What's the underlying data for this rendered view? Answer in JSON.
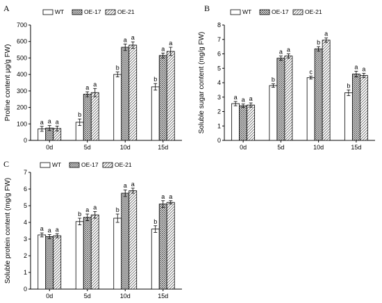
{
  "styles": {
    "WT": {
      "fill": "#ffffff"
    },
    "OE-17": {
      "fill": "url(#pat-cross)"
    },
    "OE-21": {
      "fill": "url(#pat-diag)"
    }
  },
  "chart_data": [
    {
      "panel": "A",
      "type": "bar",
      "categories": [
        "0d",
        "5d",
        "10d",
        "15d"
      ],
      "ylabel": "Proline content μg/g FW)",
      "ylim": [
        0,
        700
      ],
      "yticks": [
        0,
        100,
        200,
        300,
        400,
        500,
        600,
        700
      ],
      "legend": [
        "WT",
        "OE-17",
        "OE-21"
      ],
      "series": [
        {
          "name": "WT",
          "values": [
            70,
            110,
            400,
            325
          ],
          "errors": [
            15,
            20,
            15,
            20
          ],
          "labels": [
            "a",
            "b",
            "b",
            "b"
          ]
        },
        {
          "name": "OE-17",
          "values": [
            75,
            280,
            565,
            515
          ],
          "errors": [
            15,
            15,
            20,
            15
          ],
          "labels": [
            "a",
            "a",
            "a",
            "a"
          ]
        },
        {
          "name": "OE-21",
          "values": [
            72,
            290,
            578,
            540
          ],
          "errors": [
            15,
            25,
            20,
            25
          ],
          "labels": [
            "a",
            "a",
            "a",
            "a"
          ]
        }
      ]
    },
    {
      "panel": "B",
      "type": "bar",
      "categories": [
        "0d",
        "5d",
        "10d",
        "15d"
      ],
      "ylabel": "Soluble sugar content (mg/g FW)",
      "ylim": [
        0,
        8
      ],
      "yticks": [
        0,
        1,
        2,
        3,
        4,
        5,
        6,
        7,
        8
      ],
      "legend": [
        "WT",
        "OE-17",
        "OE-21"
      ],
      "series": [
        {
          "name": "WT",
          "values": [
            2.55,
            3.8,
            4.35,
            3.3
          ],
          "errors": [
            0.15,
            0.12,
            0.1,
            0.2
          ],
          "labels": [
            "a",
            "b",
            "c",
            "b"
          ]
        },
        {
          "name": "OE-17",
          "values": [
            2.4,
            5.7,
            6.35,
            4.6
          ],
          "errors": [
            0.12,
            0.15,
            0.15,
            0.2
          ],
          "labels": [
            "a",
            "a",
            "b",
            "a"
          ]
        },
        {
          "name": "OE-21",
          "values": [
            2.45,
            5.85,
            6.95,
            4.5
          ],
          "errors": [
            0.15,
            0.15,
            0.15,
            0.15
          ],
          "labels": [
            "a",
            "a",
            "a",
            "a"
          ]
        }
      ]
    },
    {
      "panel": "C",
      "type": "bar",
      "categories": [
        "0d",
        "5d",
        "10d",
        "15d"
      ],
      "ylabel": "Soluble protein content (mg/g FW)",
      "ylim": [
        0,
        7
      ],
      "yticks": [
        0,
        1,
        2,
        3,
        4,
        5,
        6,
        7
      ],
      "legend": [
        "WT",
        "OE-17",
        "OE-21"
      ],
      "series": [
        {
          "name": "WT",
          "values": [
            3.25,
            4.05,
            4.25,
            3.6
          ],
          "errors": [
            0.12,
            0.2,
            0.25,
            0.2
          ],
          "labels": [
            "a",
            "b",
            "b",
            "b"
          ]
        },
        {
          "name": "OE-17",
          "values": [
            3.15,
            4.3,
            5.75,
            5.1
          ],
          "errors": [
            0.12,
            0.2,
            0.2,
            0.2
          ],
          "labels": [
            "a",
            "a",
            "a",
            "a"
          ]
        },
        {
          "name": "OE-21",
          "values": [
            3.2,
            4.45,
            5.9,
            5.2
          ],
          "errors": [
            0.12,
            0.2,
            0.15,
            0.1
          ],
          "labels": [
            "a",
            "a",
            "a",
            "a"
          ]
        }
      ]
    }
  ]
}
